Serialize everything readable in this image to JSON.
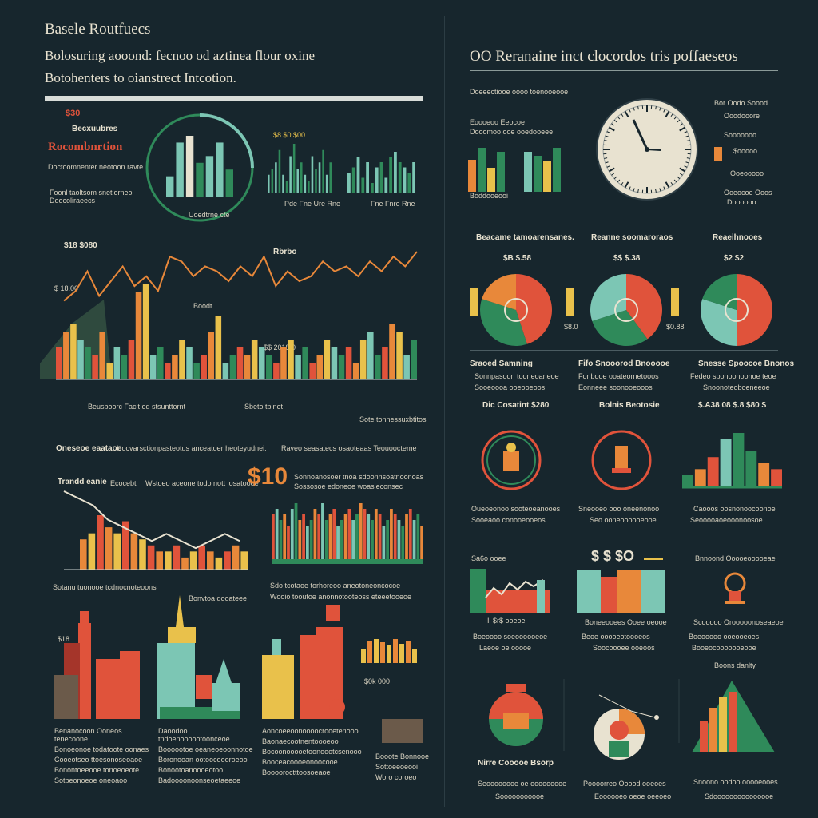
{
  "colors": {
    "bg": "#17262d",
    "red": "#e0533b",
    "orange": "#e8883a",
    "yellow": "#e9c14b",
    "green": "#2f8a5a",
    "teal": "#7cc6b4",
    "cream": "#e8e2d0",
    "brown": "#a5352a"
  },
  "left": {
    "title": "Basele Routfuecs",
    "subtitle1": "Bolosuring aooond: fecnoo od aztinea flour oxine",
    "subtitle2": "Botohenters to oianstrect Intcotion.",
    "kpi_value": "$30",
    "kpi_label": "Becxuubres",
    "kpi_big": "Rocombnrtion",
    "kpi_text1": "Doctoomnenter neotoon ravte",
    "kpi_text2": "Foonl taoltsom snetiorneo",
    "kpi_text3": "Doocoliraeecs",
    "circle_caption": "Uoedtrne cte",
    "mid_value": "$8 $0 $00",
    "mid_caption": "Pde Fne Ure Rne",
    "mid_caption2": "Fne Fnre Rne",
    "main_value": "$18 $080",
    "main_label": "Rbrbo",
    "main_label2": "Boodt",
    "main_left_label": "$ 18.00",
    "main_mid_value": "$$ 2018.0",
    "main_cap1": "Beusboorc Facit od stsunttornt",
    "main_cap2": "Sbeto tbinet",
    "main_cap3": "Sote tonnes",
    "main_cap4": "suxbtitos",
    "sect_header1": "Oneseoe eaataoe",
    "sect_header2": "Hocvarsctionpasteotus anceatoer heoteyudnei:",
    "sect_header3": "Raveo seasatecs osaoteaas Teouoocteme",
    "trend_title": "Trandd eanie",
    "trend_title2": "Ecocebt",
    "trend_sub": "Wstoeo aceone todo nott iosatoooe",
    "big_num": "$10",
    "big_num_text": "Sonnoanosoer tnoa sdoonnsoatnoonoas",
    "big_num_text2": "Sossosoe edoneoe woasieconsec",
    "trend_caption": "Sotanu tuonooe tcdnocnoteoons",
    "trend_caption2": "Bonvtoa dooateee",
    "bars2_caption": "Sdo tcotaoe torhoreoo aneotoneoncocoe",
    "bars2_caption2": "Wooio tooutoe anonnotooteoss eteeetooeoe",
    "city_label": "$18",
    "city_caption": "$0k 000",
    "city_texts": [
      [
        "Benanocoon Ooneos tenecoone",
        "Bonoeonoe todatoote oonaes",
        "Cooeotseo ttoesonoseoaoe",
        "Bonontoeeooe tonoeoeote",
        "Sotbeonoeoe oneoaoo"
      ],
      [
        "Daoodoo tndoenoooootoonceoe",
        "Boooootoe oeaneoeoonnotoe",
        "Boronooan ootoocoooroeoo",
        "Bonootoanoooeotoo",
        "Badoooonoonseoetaeeoe"
      ],
      [
        "Aoncoeeoonoooocrooetenooo",
        "Baonaecootnentoooeoo",
        "Bocoonooooetoonoootcsenooo",
        "Booceacoooeonoocooe",
        "Booooroctttoosoeaoe"
      ],
      [
        "Booote Bonnooe",
        "Sottoeeoeooi",
        "Woro coroeo"
      ]
    ]
  },
  "right": {
    "title": "OO Reranaine inct clocordos tris poffaeseos",
    "col_left": [
      "Doeeectiooe oooo toenooeooe",
      "Eoooeoo Eeocoe",
      "Dooomoo ooe ooedooeee",
      "Boddooeooi"
    ],
    "col_right": [
      "Bor Oodo Soood",
      "Ooodooore",
      "Sooooooo",
      "$ooooo",
      "Ooeooooo",
      "Ooeocoe Ooos",
      "Doooooo"
    ],
    "pie_titles": [
      "Beacame tamoarensanes.",
      "Reanne soomaroraos",
      "Reaeihnooes"
    ],
    "pie_values": [
      "$B $.58",
      "$$ $.38",
      "$2 $2"
    ],
    "pie_caps1": [
      "Sraoed Samning",
      "Fifo Snooorod Bnooooe",
      "Snesse Spoocoe Bnonos"
    ],
    "pie_caps2": [
      "Sonnpasoon tooneoaneoe",
      "Fonbooe ooateornetooos",
      "Fedeo sponoonoonoe teoe"
    ],
    "pie_caps3": [
      "Sooeoooa ooeooeoos",
      "Eonneee soonooeooos",
      "Snoonoteoboeneeoe"
    ],
    "pie_small": [
      "$8.0",
      "$0.88"
    ],
    "row2_titles": [
      "Dic  Cosatint $280",
      "Bolnis Beotosie",
      "$.A38 08 $.8 $80 $"
    ],
    "row2_caps1": [
      "Oueoeonoo sooteoeanooes",
      "Sneooeo ooo oneenonoo",
      "Caooos oosnonoocoonoe"
    ],
    "row2_caps2": [
      "Sooeaoo conooeooeos",
      "Seo ooneoooooeooe",
      "Seooooaoeooonoosoe"
    ],
    "row3_titles": [
      "Sa6o ooee",
      "$ $ $O",
      "Bnnoond Ooooeooooeae"
    ],
    "row3_caps1": [
      "Il $r$ ooeoe",
      "Boneeooees Ooee oeooe",
      "Scooooo Orooooonoseaeoe"
    ],
    "row3_caps2": [
      "Boeoooo soeoooooeoe",
      "Beoe ooooeotoooeos",
      "Boeooooo ooeooeoes"
    ],
    "row3_caps3": [
      "Laeoe oe ooooe",
      "Soocoooee ooeoos",
      "Booeocooooooeooe"
    ],
    "row4_title": "Boons danlty",
    "row4_caps1": [
      "Nirre Cooooe Bsorp",
      "",
      "Snoono oodoo ooooeooes"
    ],
    "row4_caps2": [
      "Seoooooooe oe ooooooooe",
      "Poooorreo Ooood ooeoes",
      "Sdooooooooooooooe"
    ],
    "row4_caps3": [
      "Sooooooooooe",
      "Eoooooeo oeoe oeeoeo",
      ""
    ]
  },
  "chart_data": [
    {
      "type": "bar",
      "name": "top-left-circle-bars",
      "values": [
        3,
        8,
        9,
        5,
        6,
        8,
        4
      ],
      "colors": [
        "#7cc6b4",
        "#7cc6b4",
        "#e8e2d0",
        "#2f8a5a",
        "#7cc6b4",
        "#7cc6b4",
        "#2f8a5a"
      ]
    },
    {
      "type": "bar",
      "name": "top-mid-bars",
      "values": [
        3,
        4,
        5,
        7,
        3,
        2,
        6,
        8,
        4,
        5,
        3,
        2,
        6,
        4,
        5,
        7,
        3,
        5
      ],
      "colors": [
        "#7cc6b4",
        "#2f8a5a"
      ]
    },
    {
      "type": "bar",
      "name": "top-right-bars",
      "values": [
        4,
        5,
        7,
        3,
        6,
        2,
        5,
        6,
        3,
        7,
        8,
        6,
        5,
        4,
        6
      ],
      "colors": [
        "#7cc6b4",
        "#2f8a5a"
      ]
    },
    {
      "type": "bar",
      "name": "main-bars",
      "values": [
        4,
        6,
        7,
        5,
        4,
        3,
        6,
        2,
        4,
        3,
        5,
        11,
        12,
        3,
        4,
        2,
        3,
        5,
        4,
        2,
        3,
        6,
        8,
        2,
        3,
        4,
        3,
        5,
        4,
        3,
        2,
        4,
        5,
        3,
        4,
        2,
        3,
        5,
        4,
        3,
        4,
        2,
        5,
        6,
        3,
        4,
        7,
        6,
        3,
        5
      ],
      "colors": [
        "#e0533b",
        "#e8883a",
        "#e9c14b",
        "#7cc6b4",
        "#2f8a5a"
      ]
    },
    {
      "type": "line",
      "name": "main-line",
      "y": [
        3,
        5,
        9,
        4,
        7,
        10,
        6,
        8,
        5,
        12,
        11,
        8,
        10,
        9,
        7,
        10,
        8,
        12,
        6,
        9,
        7,
        8,
        11,
        9,
        10,
        8,
        11,
        9,
        12,
        10,
        13
      ]
    },
    {
      "type": "bar",
      "name": "trend-bars",
      "values": [
        5,
        6,
        9,
        7,
        6,
        8,
        6,
        5,
        4,
        3,
        3,
        4,
        2,
        3,
        4,
        3,
        2,
        3,
        4,
        3
      ],
      "colors": [
        "#e8883a",
        "#e9c14b",
        "#e0533b"
      ]
    },
    {
      "type": "line",
      "name": "trend-line",
      "y": [
        9,
        8,
        7,
        5,
        4,
        3,
        2,
        3,
        2,
        1,
        2,
        3,
        2
      ]
    },
    {
      "type": "bar",
      "name": "dense-bars",
      "values": [
        8,
        9,
        7,
        8,
        6,
        9,
        10,
        7,
        8,
        6,
        7,
        9,
        8,
        10,
        7,
        8,
        9,
        6,
        7,
        8,
        9,
        7,
        8,
        10,
        9,
        8,
        7,
        9,
        8,
        6,
        7,
        9,
        8,
        7,
        6,
        8,
        9,
        7,
        8,
        6
      ],
      "colors": [
        "#e0533b",
        "#7cc6b4",
        "#2f8a5a",
        "#e8883a"
      ]
    },
    {
      "type": "pie",
      "name": "pie-1",
      "values": [
        45,
        35,
        20
      ],
      "colors": [
        "#e0533b",
        "#2f8a5a",
        "#e8883a"
      ]
    },
    {
      "type": "pie",
      "name": "pie-2",
      "values": [
        40,
        30,
        30
      ],
      "colors": [
        "#e0533b",
        "#2f8a5a",
        "#7cc6b4"
      ]
    },
    {
      "type": "pie",
      "name": "pie-3",
      "values": [
        50,
        30,
        20
      ],
      "colors": [
        "#e0533b",
        "#7cc6b4",
        "#2f8a5a"
      ]
    },
    {
      "type": "bar",
      "name": "right-small-bars",
      "values": [
        2,
        3,
        5,
        8,
        9,
        6,
        4,
        3
      ],
      "colors": [
        "#2f8a5a",
        "#e8883a",
        "#e0533b",
        "#7cc6b4",
        "#2f8a5a"
      ]
    }
  ]
}
